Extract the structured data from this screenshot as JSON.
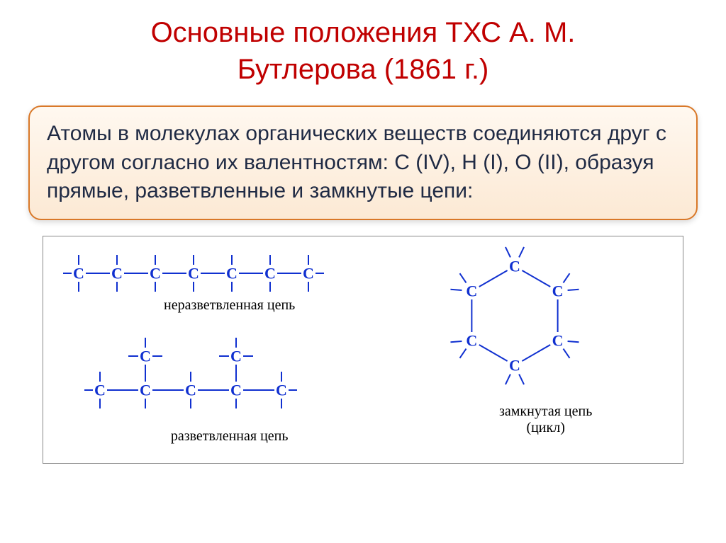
{
  "title_line1": "Основные положения ТХС А. М.",
  "title_line2": "Бутлерова (1861 г.)",
  "title_color": "#c00000",
  "box": {
    "text": "Атомы в молекулах органических веществ соединяются друг с другом согласно их валентностям: C (IV), H (I), O (II), образуя прямые, разветвленные и замкнутые цепи:",
    "text_color": "#1f2a44",
    "border_color": "#d97828",
    "bg_top": "#fff8f0",
    "bg_bottom": "#fce9d4"
  },
  "diagram": {
    "border_color": "#888888",
    "atom_label": "C",
    "atom_color": "#1030d0",
    "bond_color": "#1030d0",
    "label_color": "#000000",
    "label_fontsize": 20,
    "atom_fontsize": 22,
    "linear": {
      "label": "неразветвленная цепь",
      "n_atoms": 7,
      "spacing": 54,
      "stub_len": 14
    },
    "branched": {
      "label": "разветвленная цепь",
      "main_atoms": 5,
      "spacing": 64,
      "branch_positions": [
        1,
        3
      ],
      "branch_len": 48,
      "stub_len": 14
    },
    "cyclic": {
      "label_line1": "замкнутая цепь",
      "label_line2": "(цикл)",
      "n_atoms": 6,
      "radius": 70,
      "stub_len": 16
    }
  }
}
